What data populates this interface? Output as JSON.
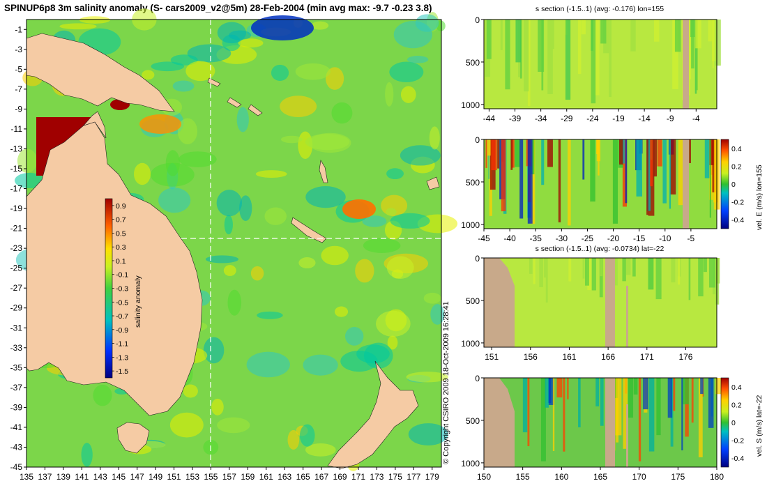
{
  "chart_data": [
    {
      "type": "heatmap",
      "title": "SPINUP6p8 3m salinity anomaly (S- cars2009_v2@5m) 28-Feb-2004 (min avg max: -9.7 -0.23 3.8)",
      "x_ticks": [
        "135",
        "137",
        "139",
        "141",
        "143",
        "145",
        "147",
        "149",
        "151",
        "153",
        "155",
        "157",
        "159",
        "161",
        "163",
        "165",
        "167",
        "169",
        "171",
        "173",
        "175",
        "177",
        "179"
      ],
      "y_ticks": [
        "-1",
        "-3",
        "-5",
        "-7",
        "-9",
        "-11",
        "-13",
        "-15",
        "-17",
        "-19",
        "-21",
        "-23",
        "-25",
        "-27",
        "-29",
        "-31",
        "-33",
        "-35",
        "-37",
        "-39",
        "-41",
        "-43",
        "-45"
      ],
      "xlim": [
        135,
        180
      ],
      "ylim": [
        -45,
        0
      ],
      "section_lon": 155,
      "section_lat": -22,
      "colorbar": {
        "label": "salinity anomaly",
        "ticks": [
          "0.9",
          "0.7",
          "0.5",
          "0.3",
          "0.1",
          "-0.1",
          "-0.3",
          "-0.5",
          "-0.7",
          "-0.9",
          "-1.1",
          "-1.3",
          "-1.5"
        ],
        "range": [
          -1.6,
          1.0
        ]
      }
    },
    {
      "type": "heatmap",
      "title": "s section (-1.5..1) (avg: -0.176) lon=155",
      "x_ticks": [
        "-44",
        "-39",
        "-34",
        "-29",
        "-24",
        "-19",
        "-14",
        "-9",
        "-4"
      ],
      "y_ticks": [
        "0",
        "500",
        "1000"
      ],
      "xlim": [
        -45,
        0
      ],
      "ylim": [
        1050,
        0
      ]
    },
    {
      "type": "heatmap",
      "title": "",
      "colorbar_label": "vel. E (m/s) lon=155",
      "x_ticks": [
        "-45",
        "-40",
        "-35",
        "-30",
        "-25",
        "-20",
        "-15",
        "-10",
        "-5"
      ],
      "y_ticks": [
        "0",
        "500",
        "1000"
      ],
      "cb_ticks": [
        "0.4",
        "0.2",
        "0",
        "-0.2",
        "-0.4"
      ],
      "xlim": [
        -45,
        0
      ],
      "ylim": [
        1050,
        0
      ]
    },
    {
      "type": "heatmap",
      "title": "s section (-1.5..1) (avg: -0.0734) lat=-22",
      "x_ticks": [
        "151",
        "156",
        "161",
        "166",
        "171",
        "176"
      ],
      "y_ticks": [
        "0",
        "500",
        "1000"
      ],
      "xlim": [
        150,
        180
      ],
      "ylim": [
        1050,
        0
      ]
    },
    {
      "type": "heatmap",
      "title": "",
      "colorbar_label": "vel. S (m/s) lat=-22",
      "x_ticks": [
        "150",
        "155",
        "160",
        "165",
        "170",
        "175",
        "180"
      ],
      "y_ticks": [
        "0",
        "500",
        "1000"
      ],
      "cb_ticks": [
        "0.4",
        "0.2",
        "0",
        "-0.2",
        "-0.4"
      ],
      "xlim": [
        150,
        180
      ],
      "ylim": [
        1050,
        0
      ]
    }
  ],
  "copyright": "© Copyright CSIRO 2009   18-Oct-2009 16:28:41",
  "colors": {
    "ocean_base": "#7cd64a",
    "land": "#f5cba4",
    "section_land": "#c8a98a",
    "high": "#a00000",
    "low": "#000090"
  }
}
